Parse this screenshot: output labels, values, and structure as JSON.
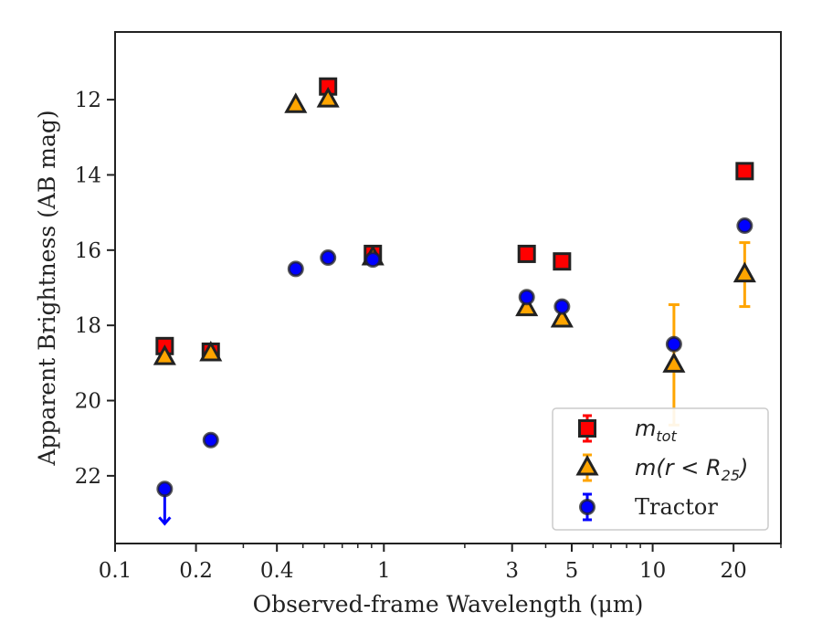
{
  "chart_data": {
    "type": "scatter",
    "title": "",
    "xlabel": "Observed-frame Wavelength (μm)",
    "ylabel": "Apparent Brightness (AB mag)",
    "x_scale": "log",
    "xlim": [
      0.1,
      30
    ],
    "ylim": [
      23.8,
      10.2
    ],
    "y_inverted": true,
    "grid": false,
    "legend_position": "lower-right",
    "x_ticks": [
      {
        "value": 0.1,
        "label": "0.1"
      },
      {
        "value": 0.2,
        "label": "0.2"
      },
      {
        "value": 0.4,
        "label": "0.4"
      },
      {
        "value": 1,
        "label": "1"
      },
      {
        "value": 3,
        "label": "3"
      },
      {
        "value": 5,
        "label": "5"
      },
      {
        "value": 10,
        "label": "10"
      },
      {
        "value": 20,
        "label": "20"
      }
    ],
    "x_minor_ticks": [
      0.3,
      0.5,
      0.6,
      0.7,
      0.8,
      0.9,
      2,
      4,
      6,
      7,
      8,
      9,
      30
    ],
    "y_ticks": [
      {
        "value": 12,
        "label": "12"
      },
      {
        "value": 14,
        "label": "14"
      },
      {
        "value": 16,
        "label": "16"
      },
      {
        "value": 18,
        "label": "18"
      },
      {
        "value": 20,
        "label": "20"
      },
      {
        "value": 22,
        "label": "22"
      }
    ],
    "series": [
      {
        "name": "m_tot",
        "label_main": "m",
        "label_sub": "tot",
        "marker": "square",
        "color": "#ff0000",
        "edge_color": "#222222",
        "points": [
          {
            "x": 0.153,
            "y": 18.55
          },
          {
            "x": 0.227,
            "y": 18.7
          },
          {
            "x": 0.62,
            "y": 11.65
          },
          {
            "x": 0.91,
            "y": 16.1
          },
          {
            "x": 3.4,
            "y": 16.1
          },
          {
            "x": 4.6,
            "y": 16.3
          },
          {
            "x": 22,
            "y": 13.9
          }
        ]
      },
      {
        "name": "m(r < R25)",
        "label_main": "m(r < R",
        "label_sub": "25",
        "label_end": ")",
        "marker": "triangle",
        "color": "#ffa500",
        "edge_color": "#222222",
        "points": [
          {
            "x": 0.153,
            "y": 18.85
          },
          {
            "x": 0.227,
            "y": 18.75
          },
          {
            "x": 0.47,
            "y": 12.15
          },
          {
            "x": 0.62,
            "y": 12.0
          },
          {
            "x": 0.91,
            "y": 16.2
          },
          {
            "x": 3.4,
            "y": 17.55
          },
          {
            "x": 4.6,
            "y": 17.85
          },
          {
            "x": 12,
            "y": 19.05,
            "err_low": 1.6,
            "err_high": 1.6
          },
          {
            "x": 22,
            "y": 16.65,
            "err_low": 0.85,
            "err_high": 0.85
          }
        ]
      },
      {
        "name": "Tractor",
        "label_main": "Tractor",
        "marker": "circle",
        "color": "#0000ff",
        "edge_color": "#222222",
        "points": [
          {
            "x": 0.153,
            "y": 22.35,
            "upper_limit": true
          },
          {
            "x": 0.227,
            "y": 21.05
          },
          {
            "x": 0.47,
            "y": 16.5
          },
          {
            "x": 0.62,
            "y": 16.2
          },
          {
            "x": 0.91,
            "y": 16.25
          },
          {
            "x": 3.4,
            "y": 17.25
          },
          {
            "x": 4.6,
            "y": 17.5
          },
          {
            "x": 12,
            "y": 18.5
          },
          {
            "x": 22,
            "y": 15.35
          }
        ]
      }
    ]
  }
}
